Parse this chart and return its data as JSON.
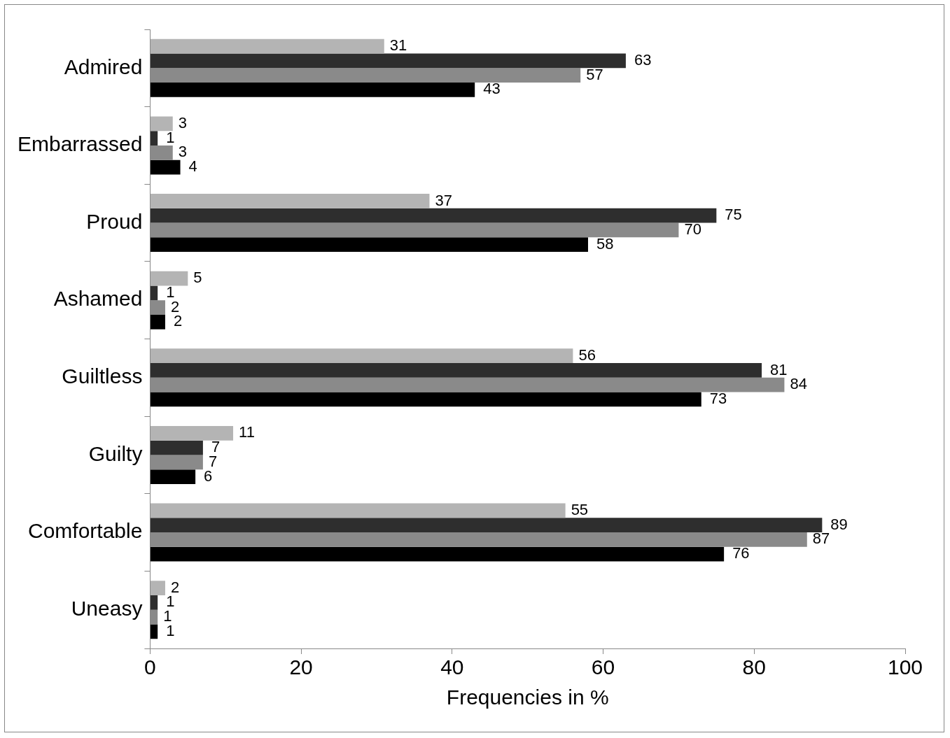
{
  "chart_data": {
    "type": "bar",
    "orientation": "horizontal",
    "xlabel": "Frequencies in %",
    "categories": [
      "Admired",
      "Embarrassed",
      "Proud",
      "Ashamed",
      "Guiltless",
      "Guilty",
      "Comfortable",
      "Uneasy"
    ],
    "series": [
      {
        "color": "#b4b4b4",
        "values": [
          31,
          3,
          37,
          5,
          56,
          11,
          55,
          2
        ]
      },
      {
        "color": "#2e2e2e",
        "values": [
          63,
          1,
          75,
          1,
          81,
          7,
          89,
          1
        ]
      },
      {
        "color": "#8a8a8a",
        "values": [
          57,
          3,
          70,
          2,
          84,
          7,
          87,
          1
        ]
      },
      {
        "color": "#000000",
        "values": [
          43,
          4,
          58,
          2,
          73,
          6,
          76,
          1
        ]
      }
    ],
    "xlim": [
      0,
      100
    ],
    "xticks": [
      0,
      20,
      40,
      60,
      80,
      100
    ],
    "grid": false,
    "legend": false,
    "data_labels": true
  }
}
